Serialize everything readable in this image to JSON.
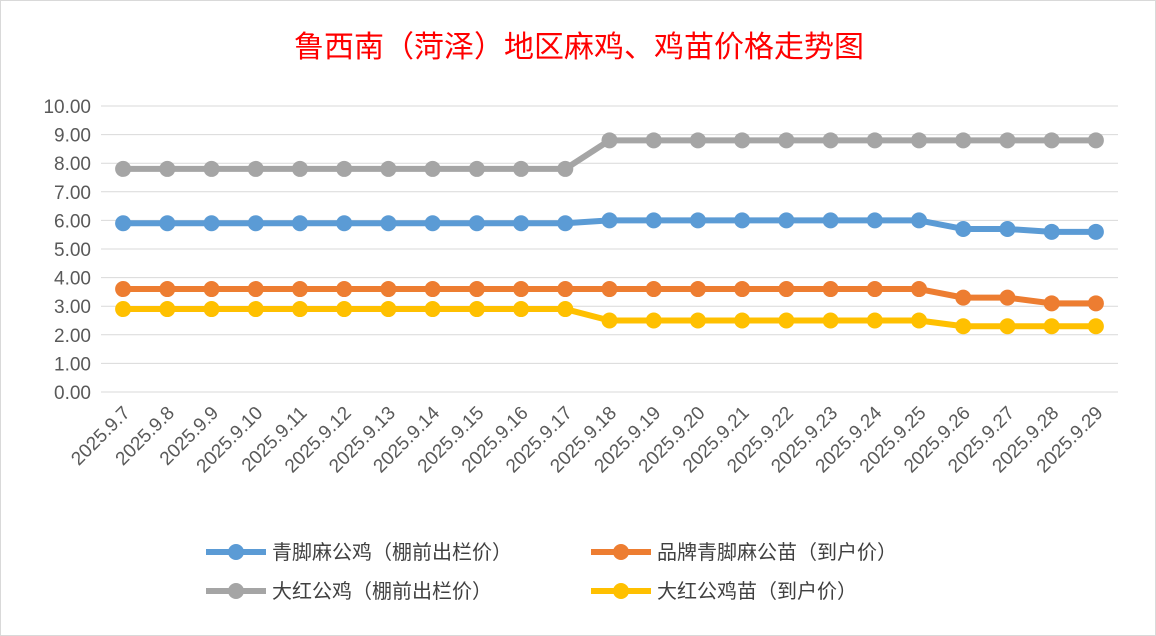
{
  "chart_data": {
    "type": "line",
    "title": "鲁西南（菏泽）地区麻鸡、鸡苗价格走势图",
    "xlabel": "",
    "ylabel": "",
    "ylim": [
      0,
      10
    ],
    "yticks": [
      "0.00",
      "1.00",
      "2.00",
      "3.00",
      "4.00",
      "5.00",
      "6.00",
      "7.00",
      "8.00",
      "9.00",
      "10.00"
    ],
    "grid": true,
    "legend_position": "bottom",
    "categories": [
      "2025.9.7",
      "2025.9.8",
      "2025.9.9",
      "2025.9.10",
      "2025.9.11",
      "2025.9.12",
      "2025.9.13",
      "2025.9.14",
      "2025.9.15",
      "2025.9.16",
      "2025.9.17",
      "2025.9.18",
      "2025.9.19",
      "2025.9.20",
      "2025.9.21",
      "2025.9.22",
      "2025.9.23",
      "2025.9.24",
      "2025.9.25",
      "2025.9.26",
      "2025.9.27",
      "2025.9.28",
      "2025.9.29"
    ],
    "series": [
      {
        "name": "青脚麻公鸡（棚前出栏价）",
        "color": "#5b9bd5",
        "values": [
          5.9,
          5.9,
          5.9,
          5.9,
          5.9,
          5.9,
          5.9,
          5.9,
          5.9,
          5.9,
          5.9,
          6.0,
          6.0,
          6.0,
          6.0,
          6.0,
          6.0,
          6.0,
          6.0,
          5.7,
          5.7,
          5.6,
          5.6
        ]
      },
      {
        "name": "品牌青脚麻公苗（到户价）",
        "color": "#ed7d31",
        "values": [
          3.6,
          3.6,
          3.6,
          3.6,
          3.6,
          3.6,
          3.6,
          3.6,
          3.6,
          3.6,
          3.6,
          3.6,
          3.6,
          3.6,
          3.6,
          3.6,
          3.6,
          3.6,
          3.6,
          3.3,
          3.3,
          3.1,
          3.1
        ]
      },
      {
        "name": "大红公鸡（棚前出栏价）",
        "color": "#a5a5a5",
        "values": [
          7.8,
          7.8,
          7.8,
          7.8,
          7.8,
          7.8,
          7.8,
          7.8,
          7.8,
          7.8,
          7.8,
          8.8,
          8.8,
          8.8,
          8.8,
          8.8,
          8.8,
          8.8,
          8.8,
          8.8,
          8.8,
          8.8,
          8.8
        ]
      },
      {
        "name": "大红公鸡苗（到户价）",
        "color": "#ffc000",
        "values": [
          2.9,
          2.9,
          2.9,
          2.9,
          2.9,
          2.9,
          2.9,
          2.9,
          2.9,
          2.9,
          2.9,
          2.5,
          2.5,
          2.5,
          2.5,
          2.5,
          2.5,
          2.5,
          2.5,
          2.3,
          2.3,
          2.3,
          2.3
        ]
      }
    ]
  }
}
